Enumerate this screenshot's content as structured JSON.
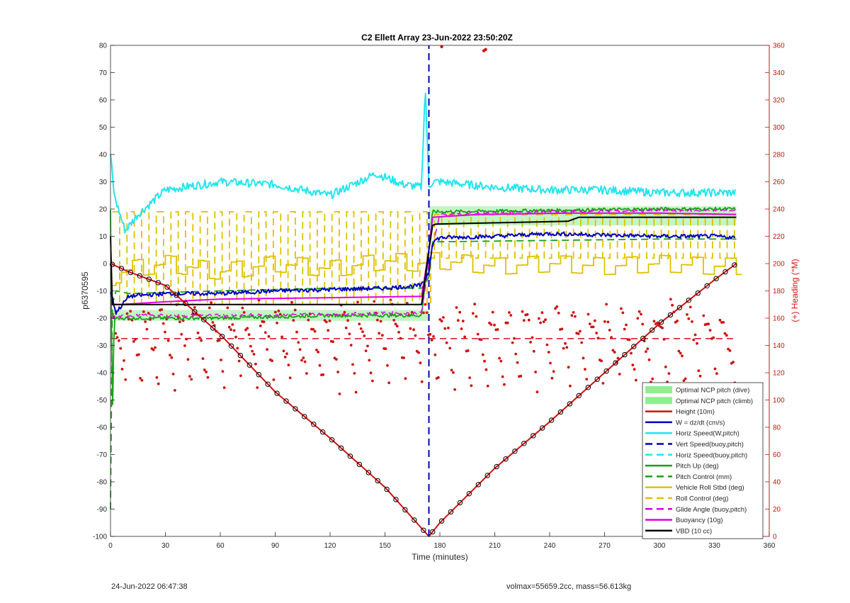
{
  "chart_data": {
    "type": "line",
    "title": "C2 Ellett Array 23-Jun-2022 23:50:20Z",
    "xlabel": "Time (minutes)",
    "ylabel": "p6370595",
    "y2label": "(+) Heading (°M)",
    "xlim": [
      0,
      360
    ],
    "ylim": [
      -100,
      80
    ],
    "y2lim": [
      0,
      360
    ],
    "xticks": [
      0,
      30,
      60,
      90,
      120,
      150,
      180,
      210,
      240,
      270,
      300,
      330,
      360
    ],
    "yticks": [
      -100,
      -90,
      -80,
      -70,
      -60,
      -50,
      -40,
      -30,
      -20,
      -10,
      0,
      10,
      20,
      30,
      40,
      50,
      60,
      70,
      80
    ],
    "y2ticks": [
      0,
      20,
      40,
      60,
      80,
      100,
      120,
      140,
      160,
      180,
      200,
      220,
      240,
      260,
      280,
      300,
      320,
      340,
      360
    ],
    "grid": false,
    "legend_position": "lower-right",
    "apogee_time": 174,
    "end_time": 342,
    "series": [
      {
        "name": "Optimal NCP pitch (dive)",
        "style": "band",
        "color": "#90ee90",
        "x": [
          0,
          174
        ],
        "y_low": -21,
        "y_high": -17
      },
      {
        "name": "Optimal NCP pitch (climb)",
        "style": "band",
        "color": "#90ee90",
        "x": [
          174,
          342
        ],
        "y_low": 14,
        "y_high": 21
      },
      {
        "name": "Height (10m)",
        "style": "solid",
        "color": "#d01010",
        "x": [
          0,
          10,
          30,
          60,
          90,
          120,
          150,
          170,
          174,
          180,
          210,
          240,
          270,
          300,
          330,
          342
        ],
        "y": [
          0,
          -3,
          -8,
          -26,
          -47,
          -64,
          -82,
          -97,
          -100,
          -95,
          -75,
          -58,
          -40,
          -22,
          -6,
          0
        ]
      },
      {
        "name": "W = dz/dt (cm/s)",
        "style": "solid",
        "color": "#0000c0",
        "x": [
          0,
          3,
          10,
          30,
          60,
          90,
          120,
          150,
          170,
          174,
          176,
          180,
          210,
          240,
          270,
          300,
          330,
          342
        ],
        "y": [
          -10,
          -18,
          -12,
          -11,
          -11,
          -10,
          -9.5,
          -9,
          -8,
          -3,
          8,
          9.5,
          10,
          11,
          10.5,
          10,
          10,
          9.5
        ]
      },
      {
        "name": "Horiz Speed(W,pitch)",
        "style": "solid",
        "color": "#22e5ee",
        "x": [
          0,
          2,
          8,
          15,
          30,
          60,
          90,
          120,
          145,
          160,
          170,
          172,
          174,
          176,
          180,
          210,
          240,
          270,
          300,
          330,
          342
        ],
        "y": [
          40,
          25,
          12,
          18,
          27,
          30,
          29,
          25,
          33,
          29,
          28,
          66,
          28,
          30,
          30,
          28,
          27,
          27,
          26,
          26,
          26
        ]
      },
      {
        "name": "Vert Speed(buoy,pitch)",
        "style": "dashed",
        "color": "#0000c0",
        "x": [
          174,
          174
        ],
        "y": [
          -100,
          80
        ]
      },
      {
        "name": "Horiz Speed(buoy,pitch)",
        "style": "dashed",
        "color": "#22e5ee",
        "x": [],
        "y": []
      },
      {
        "name": "Pitch Up (deg)",
        "style": "solid",
        "color": "#18a018",
        "x": [
          0,
          1,
          2,
          4,
          10,
          60,
          120,
          170,
          174,
          176,
          180,
          240,
          300,
          342
        ],
        "y": [
          20,
          -60,
          -20,
          -20,
          -20,
          -20,
          -19,
          -19,
          5,
          19,
          19,
          19.5,
          20,
          20
        ]
      },
      {
        "name": "Pitch Control (mm)",
        "style": "dashed",
        "color": "#18a018",
        "x": [
          0,
          1,
          3,
          10,
          60,
          120,
          170,
          174,
          176,
          180,
          240,
          300,
          342
        ],
        "y": [
          -90,
          -15,
          -10,
          -11,
          -10,
          -9,
          -9,
          -5,
          8,
          8,
          8.5,
          9,
          9
        ]
      },
      {
        "name": "Vehicle Roll Stbd (deg)",
        "style": "solid",
        "color": "#e0c000",
        "x": [
          0,
          10,
          30,
          60,
          90,
          120,
          150,
          170,
          174,
          180,
          210,
          240,
          270,
          300,
          330,
          342
        ],
        "y": [
          -5,
          -2,
          0,
          -3,
          0,
          -2,
          1,
          0,
          1,
          1,
          -1,
          0,
          -1,
          0,
          -1,
          -1
        ]
      },
      {
        "name": "Roll Control (deg)",
        "style": "dashed",
        "color": "#e0c000",
        "x": [
          0,
          10,
          30,
          60,
          90,
          120,
          150,
          170,
          174,
          180,
          210,
          240,
          270,
          300,
          330,
          342
        ],
        "y": [
          -20,
          20,
          -18,
          20,
          0,
          20,
          -18,
          0,
          5,
          18,
          0,
          18,
          0,
          18,
          0,
          18
        ]
      },
      {
        "name": "Glide Angle (buoy,pitch)",
        "style": "dashed",
        "color": "#e000e0",
        "x": [
          0,
          10,
          60,
          120,
          170,
          174,
          180,
          240,
          300,
          342
        ],
        "y": [
          -20,
          -19,
          -19,
          -18.5,
          -18,
          0,
          18,
          19,
          19.5,
          19.5
        ]
      },
      {
        "name": "Buoyancy (10g)",
        "style": "solid",
        "color": "#e000e0",
        "x": [
          0,
          5,
          30,
          60,
          120,
          170,
          174,
          176,
          200,
          250,
          300,
          342
        ],
        "y": [
          -15,
          -15,
          -14,
          -13,
          -12.5,
          -12,
          5,
          17,
          18,
          18.5,
          18.5,
          18
        ]
      },
      {
        "name": "VBD (10 cc)",
        "style": "solid",
        "color": "#000000",
        "x": [
          0,
          1,
          170,
          174,
          176,
          178,
          250,
          256,
          340,
          342
        ],
        "y": [
          10,
          -15,
          -15,
          5,
          14,
          14.5,
          15.5,
          17,
          17,
          17
        ]
      },
      {
        "name": "Heading",
        "style": "dots",
        "axis": "right",
        "color": "#d01010",
        "mean_line": 145
      }
    ]
  },
  "footer": {
    "left": "24-Jun-2022 06:47:38",
    "right": "volmax=55659.2cc, mass=56.613kg"
  }
}
